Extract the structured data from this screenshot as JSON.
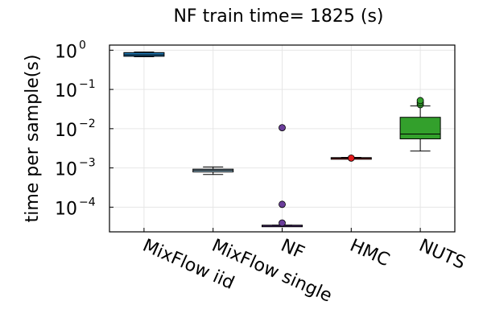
{
  "chart_data": {
    "type": "boxplot",
    "title": "NF train time= 1825 (s)",
    "ylabel": "time per sample(s)",
    "xlabel": "",
    "yscale": "log10",
    "ylim": [
      2.35e-05,
      1.35
    ],
    "grid": true,
    "legend": "none",
    "yticks": [
      {
        "base": "10",
        "exp": "0",
        "value": 1
      },
      {
        "base": "10",
        "exp": "−1",
        "value": 0.1
      },
      {
        "base": "10",
        "exp": "−2",
        "value": 0.01
      },
      {
        "base": "10",
        "exp": "−3",
        "value": 0.001
      },
      {
        "base": "10",
        "exp": "−4",
        "value": 0.0001
      }
    ],
    "categories": [
      "MixFlow iid",
      "MixFlow single",
      "NF",
      "HMC",
      "NUTS"
    ],
    "series": [
      {
        "name": "MixFlow iid",
        "color": "#1f78b4",
        "min": 0.68,
        "q1": 0.7,
        "median": 0.76,
        "q3": 0.87,
        "max": 0.9,
        "outliers": []
      },
      {
        "name": "MixFlow single",
        "color": "#a6cee3",
        "min": 0.00068,
        "q1": 0.00079,
        "median": 0.00087,
        "q3": 0.00093,
        "max": 0.00106,
        "outliers": []
      },
      {
        "name": "NF",
        "color": "#6a3d9a",
        "min": 3.35e-05,
        "q1": 3.38e-05,
        "median": 3.43e-05,
        "q3": 3.48e-05,
        "max": 3.5e-05,
        "outliers": [
          0.0106,
          0.000118,
          3.95e-05
        ]
      },
      {
        "name": "HMC",
        "color": "#e31a1c",
        "min": 0.00173,
        "q1": 0.00175,
        "median": 0.00178,
        "q3": 0.00183,
        "max": 0.00186,
        "outliers": [
          0.00178
        ]
      },
      {
        "name": "NUTS",
        "color": "#33a02c",
        "min": 0.0027,
        "q1": 0.0055,
        "median": 0.0073,
        "q3": 0.0195,
        "max": 0.038,
        "outliers": [
          0.041,
          0.046,
          0.052
        ]
      }
    ]
  }
}
